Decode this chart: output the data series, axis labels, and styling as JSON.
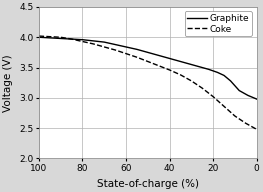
{
  "title": "",
  "xlabel": "State-of-charge (%)",
  "ylabel": "Voltage (V)",
  "xlim": [
    100,
    0
  ],
  "ylim": [
    2,
    4.5
  ],
  "xticks": [
    100,
    80,
    60,
    40,
    20,
    0
  ],
  "yticks": [
    2,
    2.5,
    3,
    3.5,
    4,
    4.5
  ],
  "graphite_x": [
    100,
    95,
    90,
    85,
    80,
    75,
    70,
    65,
    60,
    55,
    50,
    45,
    40,
    35,
    30,
    25,
    22,
    18,
    15,
    12,
    10,
    8,
    6,
    4,
    2,
    0
  ],
  "graphite_y": [
    4.0,
    3.99,
    3.98,
    3.97,
    3.96,
    3.94,
    3.92,
    3.88,
    3.84,
    3.8,
    3.75,
    3.7,
    3.65,
    3.6,
    3.55,
    3.5,
    3.47,
    3.42,
    3.37,
    3.28,
    3.2,
    3.12,
    3.08,
    3.04,
    3.01,
    2.98
  ],
  "coke_x": [
    100,
    95,
    90,
    85,
    80,
    75,
    70,
    65,
    60,
    55,
    50,
    45,
    40,
    35,
    30,
    25,
    20,
    15,
    10,
    5,
    2,
    0
  ],
  "coke_y": [
    4.02,
    4.01,
    4.0,
    3.97,
    3.93,
    3.89,
    3.84,
    3.79,
    3.73,
    3.67,
    3.6,
    3.53,
    3.46,
    3.38,
    3.28,
    3.16,
    3.02,
    2.86,
    2.7,
    2.58,
    2.52,
    2.48
  ],
  "line_color": "#000000",
  "background_color": "#d8d8d8",
  "plot_bg_color": "#ffffff",
  "grid_color": "#b0b0b0",
  "legend_labels": [
    "Graphite",
    "Coke"
  ],
  "fontsize_axis_label": 7.5,
  "fontsize_tick": 6.5,
  "fontsize_legend": 6.5
}
